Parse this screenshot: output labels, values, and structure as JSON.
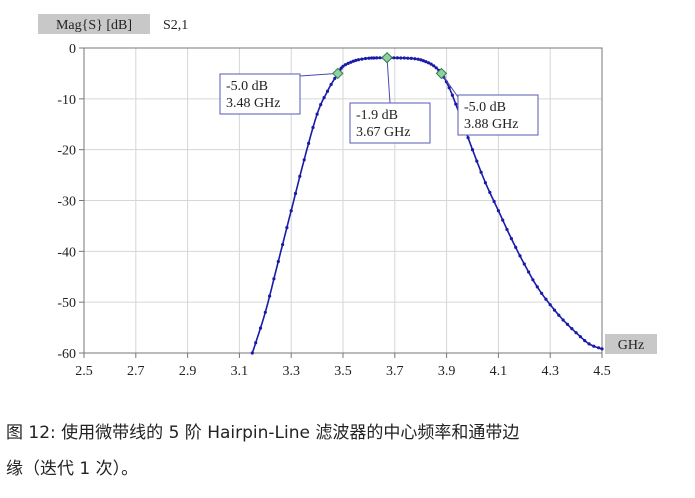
{
  "chart_data": {
    "type": "line",
    "title_box": "Mag{S} [dB]",
    "series_label": "S2,1",
    "xunit": "GHz",
    "xlim": [
      2.5,
      4.5
    ],
    "ylim": [
      -60,
      0
    ],
    "xticks": [
      "2.5",
      "2.7",
      "2.9",
      "3.1",
      "3.3",
      "3.5",
      "3.7",
      "3.9",
      "4.1",
      "4.3",
      "4.5"
    ],
    "yticks": [
      "0",
      "-10",
      "-20",
      "-30",
      "-40",
      "-50",
      "-60"
    ],
    "grid": true,
    "line_color": "#1a1aa8",
    "x": [
      3.15,
      3.2,
      3.25,
      3.3,
      3.35,
      3.4,
      3.44,
      3.48,
      3.5,
      3.53,
      3.56,
      3.6,
      3.63,
      3.67,
      3.71,
      3.75,
      3.79,
      3.82,
      3.85,
      3.88,
      3.91,
      3.95,
      4.0,
      4.05,
      4.1,
      4.15,
      4.2,
      4.25,
      4.3,
      4.35,
      4.4,
      4.45,
      4.5
    ],
    "y": [
      -60,
      -52,
      -42,
      -32,
      -22,
      -13,
      -8.5,
      -5.0,
      -3.6,
      -2.8,
      -2.3,
      -2.0,
      -1.95,
      -1.9,
      -1.95,
      -2.0,
      -2.2,
      -2.7,
      -3.5,
      -5.0,
      -7.8,
      -13,
      -20,
      -26.5,
      -32,
      -37.5,
      -42.5,
      -47,
      -50.5,
      -53.5,
      -56,
      -58.2,
      -59.2
    ],
    "markers": [
      {
        "x": 3.48,
        "y": -5.0,
        "line1": "-5.0 dB",
        "line2": "3.48 GHz"
      },
      {
        "x": 3.67,
        "y": -1.9,
        "line1": "-1.9 dB",
        "line2": "3.67 GHz"
      },
      {
        "x": 3.88,
        "y": -5.0,
        "line1": "-5.0 dB",
        "line2": "3.88 GHz"
      }
    ]
  },
  "caption": {
    "line1": "图 12: 使用微带线的 5 阶 Hairpin-Line 滤波器的中心频率和通带边",
    "line2": "缘（迭代 1 次）。"
  }
}
